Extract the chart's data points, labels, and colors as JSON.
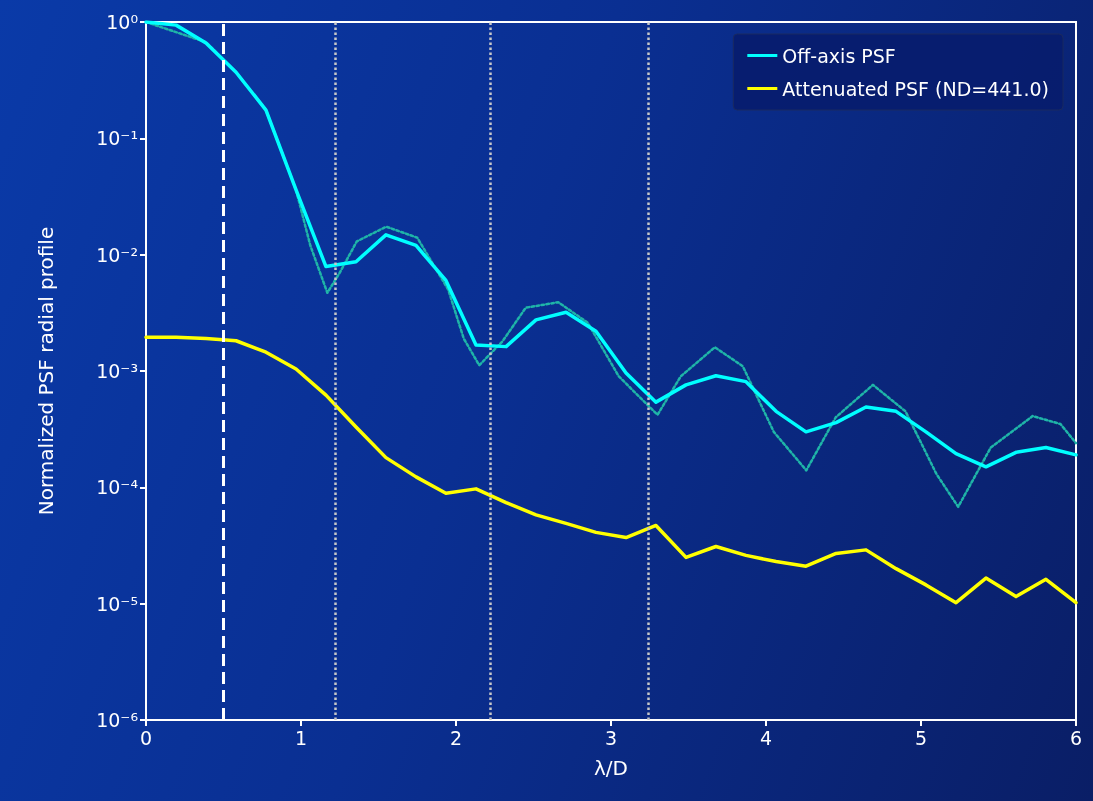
{
  "chart_data": {
    "type": "line",
    "xlabel": "λ/D",
    "ylabel": "Normalized PSF radial profile",
    "xlim": [
      0,
      6
    ],
    "xticks": [
      0,
      1,
      2,
      3,
      4,
      5,
      6
    ],
    "ylim": [
      1e-06,
      1
    ],
    "yticks": [
      {
        "value": 1e-06,
        "label": "10⁻⁶"
      },
      {
        "value": 1e-05,
        "label": "10⁻⁵"
      },
      {
        "value": 0.0001,
        "label": "10⁻⁴"
      },
      {
        "value": 0.001,
        "label": "10⁻³"
      },
      {
        "value": 0.01,
        "label": "10⁻²"
      },
      {
        "value": 0.1,
        "label": "10⁻¹"
      },
      {
        "value": 1,
        "label": "10⁰"
      }
    ],
    "log": "y",
    "grid": false,
    "legend": "top right",
    "marker": "none",
    "series": [
      {
        "name": "Off-axis PSF",
        "color": "#00ffff",
        "line_style": "solid",
        "x": [
          0,
          0.194,
          0.387,
          0.581,
          0.774,
          0.968,
          1.161,
          1.355,
          1.548,
          1.742,
          1.935,
          2.129,
          2.323,
          2.516,
          2.71,
          2.903,
          3.097,
          3.29,
          3.484,
          3.677,
          3.871,
          4.065,
          4.258,
          4.452,
          4.645,
          4.839,
          5.032,
          5.226,
          5.419,
          5.613,
          5.806,
          6
        ],
        "values": [
          1.0,
          0.94,
          0.66,
          0.37,
          0.175,
          0.036,
          0.0079,
          0.0087,
          0.0148,
          0.012,
          0.006,
          0.00167,
          0.00162,
          0.00275,
          0.0032,
          0.0022,
          0.00096,
          0.00054,
          0.00076,
          0.00091,
          0.00081,
          0.00045,
          0.0003,
          0.00036,
          0.00049,
          0.00045,
          0.0003,
          0.000195,
          0.00015,
          0.0002,
          0.00022,
          0.00019
        ]
      },
      {
        "color": "#1fb5a8",
        "line_style": "dotted",
        "x": [
          0,
          0.387,
          0.581,
          0.774,
          0.968,
          1.06,
          1.17,
          1.25,
          1.36,
          1.55,
          1.75,
          1.95,
          2.05,
          2.15,
          2.3,
          2.45,
          2.66,
          2.85,
          3.05,
          3.3,
          3.45,
          3.67,
          3.85,
          4.05,
          4.26,
          4.45,
          4.69,
          4.9,
          5.1,
          5.24,
          5.45,
          5.72,
          5.9,
          6
        ],
        "values": [
          1.0,
          0.67,
          0.37,
          0.175,
          0.036,
          0.012,
          0.0047,
          0.007,
          0.013,
          0.0174,
          0.014,
          0.005,
          0.0019,
          0.00112,
          0.0018,
          0.0035,
          0.0039,
          0.0026,
          0.0009,
          0.00042,
          0.0009,
          0.0016,
          0.0011,
          0.0003,
          0.00014,
          0.0004,
          0.00076,
          0.00045,
          0.00013,
          6.8e-05,
          0.00022,
          0.00041,
          0.00035,
          0.00024
        ]
      },
      {
        "name": "Attenuated PSF (ND=441.0)",
        "color": "#ffff00",
        "line_style": "solid",
        "x": [
          0,
          0.194,
          0.387,
          0.581,
          0.774,
          0.968,
          1.161,
          1.355,
          1.548,
          1.742,
          1.935,
          2.129,
          2.323,
          2.516,
          2.71,
          2.903,
          3.097,
          3.29,
          3.484,
          3.677,
          3.871,
          4.065,
          4.258,
          4.452,
          4.645,
          4.839,
          5.032,
          5.226,
          5.419,
          5.613,
          5.806,
          6
        ],
        "values": [
          0.00195,
          0.00195,
          0.0019,
          0.00182,
          0.00145,
          0.00104,
          0.00062,
          0.00033,
          0.00018,
          0.000123,
          8.9e-05,
          9.7e-05,
          7.4e-05,
          5.8e-05,
          4.9e-05,
          4.1e-05,
          3.7e-05,
          4.7e-05,
          2.5e-05,
          3.1e-05,
          2.6e-05,
          2.3e-05,
          2.1e-05,
          2.7e-05,
          2.9e-05,
          2e-05,
          1.45e-05,
          1.02e-05,
          1.66e-05,
          1.15e-05,
          1.62e-05,
          1.02e-05
        ]
      }
    ],
    "ref_lines": [
      {
        "axis": "x",
        "value": 0.5,
        "color": "#ffffff",
        "line_style": "dashed"
      },
      {
        "axis": "x",
        "value": 1.22,
        "color": "#c8c8c8",
        "line_style": "dotted"
      },
      {
        "axis": "x",
        "value": 2.22,
        "color": "#c8c8c8",
        "line_style": "dotted"
      },
      {
        "axis": "x",
        "value": 3.24,
        "color": "#c8c8c8",
        "line_style": "dotted"
      }
    ]
  }
}
